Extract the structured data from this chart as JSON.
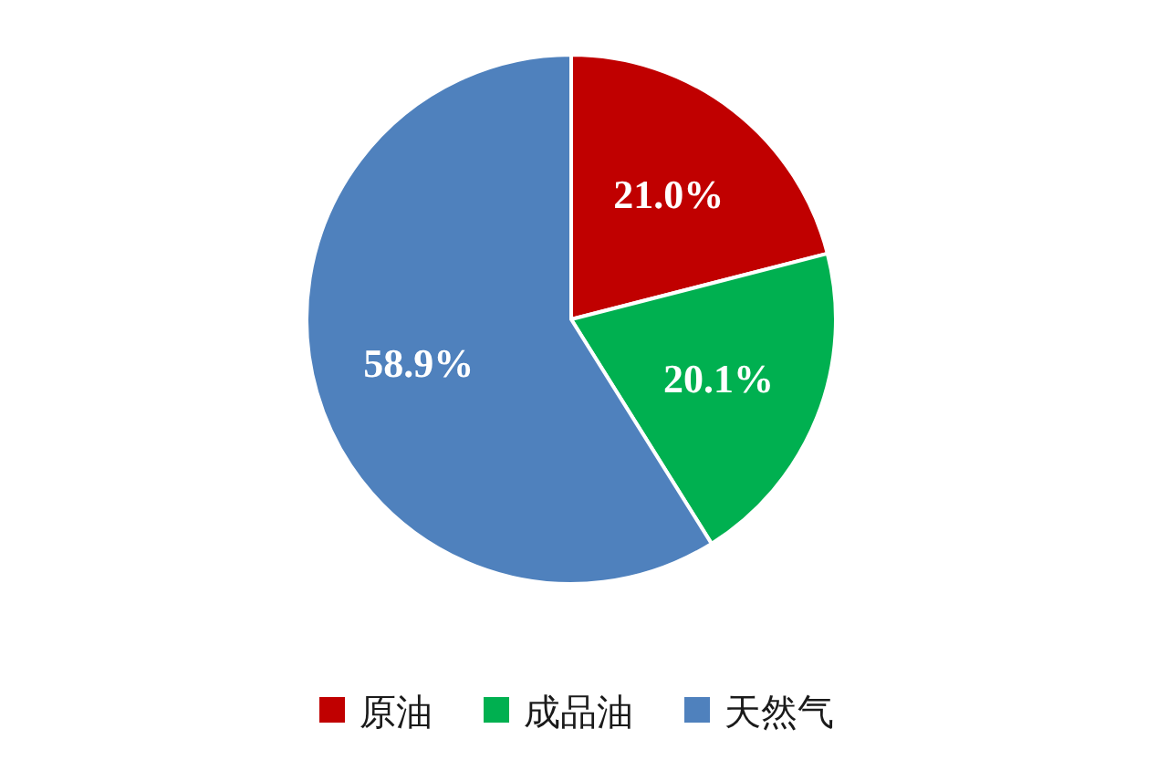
{
  "chart_data": {
    "type": "pie",
    "categories": [
      "原油",
      "成品油",
      "天然气"
    ],
    "values": [
      21.0,
      20.1,
      58.9
    ],
    "value_labels": [
      "21.0%",
      "20.1%",
      "58.9%"
    ],
    "colors": [
      "#c00000",
      "#00b050",
      "#4f81bd"
    ],
    "legend": "bottom"
  }
}
